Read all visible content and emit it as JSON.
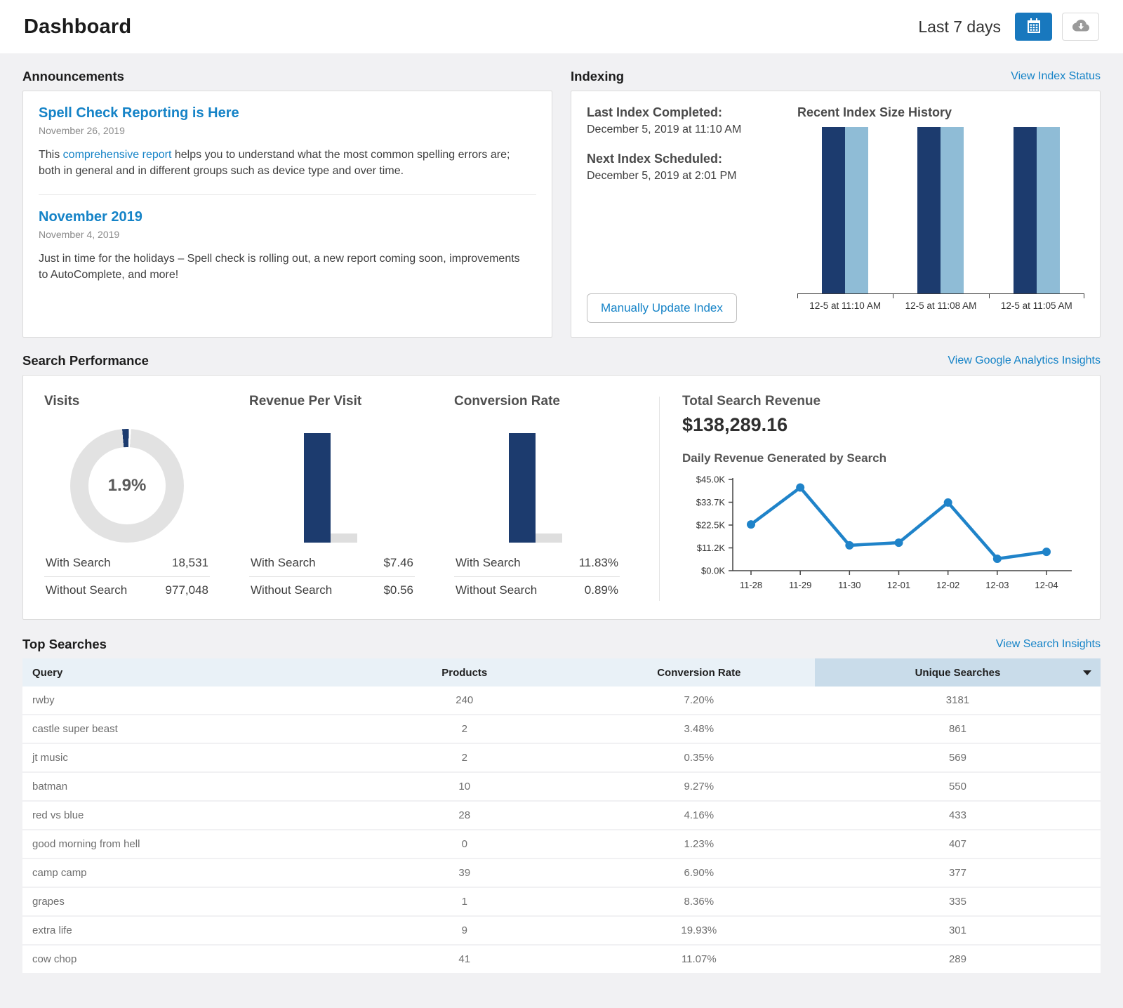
{
  "header": {
    "title": "Dashboard",
    "date_range": "Last 7 days"
  },
  "announcements": {
    "section_title": "Announcements",
    "items": [
      {
        "title": "Spell Check Reporting is Here",
        "date": "November 26, 2019",
        "body_pre": "This ",
        "link_text": "comprehensive report",
        "body_post": " helps you to understand what the most common spelling errors are; both in general and in different groups such as device type and over time."
      },
      {
        "title": "November 2019",
        "date": "November 4, 2019",
        "body": "Just in time for the holidays – Spell check is rolling out, a new report coming soon, improvements to AutoComplete, and more!"
      }
    ]
  },
  "indexing": {
    "section_title": "Indexing",
    "view_link": "View Index Status",
    "last_index_label": "Last Index Completed:",
    "last_index_value": "December 5, 2019 at 11:10 AM",
    "next_index_label": "Next Index Scheduled:",
    "next_index_value": "December 5, 2019 at 2:01 PM",
    "update_button": "Manually Update Index"
  },
  "search_performance": {
    "section_title": "Search Performance",
    "view_link": "View Google Analytics Insights",
    "metrics": [
      {
        "title": "Visits",
        "rows": [
          {
            "label": "With Search",
            "value": "18,531"
          },
          {
            "label": "Without Search",
            "value": "977,048"
          }
        ]
      },
      {
        "title": "Revenue Per Visit",
        "rows": [
          {
            "label": "With Search",
            "value": "$7.46"
          },
          {
            "label": "Without Search",
            "value": "$0.56"
          }
        ]
      },
      {
        "title": "Conversion Rate",
        "rows": [
          {
            "label": "With Search",
            "value": "11.83%"
          },
          {
            "label": "Without Search",
            "value": "0.89%"
          }
        ]
      }
    ],
    "total_revenue_label": "Total Search Revenue",
    "total_revenue_value": "$138,289.16"
  },
  "top_searches": {
    "section_title": "Top Searches",
    "view_link": "View Search Insights",
    "columns": [
      "Query",
      "Products",
      "Conversion Rate",
      "Unique Searches"
    ],
    "sorted_by": "Unique Searches",
    "sort_direction": "desc",
    "rows": [
      [
        "rwby",
        "240",
        "7.20%",
        "3181"
      ],
      [
        "castle super beast",
        "2",
        "3.48%",
        "861"
      ],
      [
        "jt music",
        "2",
        "0.35%",
        "569"
      ],
      [
        "batman",
        "10",
        "9.27%",
        "550"
      ],
      [
        "red vs blue",
        "28",
        "4.16%",
        "433"
      ],
      [
        "good morning from hell",
        "0",
        "1.23%",
        "407"
      ],
      [
        "camp camp",
        "39",
        "6.90%",
        "377"
      ],
      [
        "grapes",
        "1",
        "8.36%",
        "335"
      ],
      [
        "extra life",
        "9",
        "19.93%",
        "301"
      ],
      [
        "cow chop",
        "41",
        "11.07%",
        "289"
      ]
    ]
  },
  "chart_data": [
    {
      "id": "index_size_history",
      "type": "bar",
      "title": "Recent Index Size History",
      "categories": [
        "12-5 at 11:10 AM",
        "12-5 at 11:08 AM",
        "12-5 at 11:05 AM"
      ],
      "series": [
        {
          "name": "index-size-dark",
          "color": "#1c3b6e",
          "values": [
            1,
            1,
            1
          ]
        },
        {
          "name": "index-size-light",
          "color": "#8fbcd6",
          "values": [
            1,
            1,
            1
          ]
        }
      ],
      "note": "all bars equal height, no value labels shown"
    },
    {
      "id": "visits_share",
      "type": "pie",
      "title": "Visits",
      "center_label": "1.9%",
      "slices": [
        {
          "label": "With Search",
          "value": 1.9,
          "color": "#1c3b6e"
        },
        {
          "label": "Without Search",
          "value": 98.1,
          "color": "#e2e2e2"
        }
      ]
    },
    {
      "id": "revenue_per_visit",
      "type": "bar",
      "title": "Revenue Per Visit",
      "categories": [
        "With Search",
        "Without Search"
      ],
      "values": [
        7.46,
        0.56
      ],
      "colors": [
        "#1c3b6e",
        "#dedede"
      ]
    },
    {
      "id": "conversion_rate",
      "type": "bar",
      "title": "Conversion Rate",
      "categories": [
        "With Search",
        "Without Search"
      ],
      "values": [
        11.83,
        0.89
      ],
      "colors": [
        "#1c3b6e",
        "#dedede"
      ]
    },
    {
      "id": "daily_revenue",
      "type": "line",
      "title": "Daily Revenue Generated by Search",
      "x": [
        "11-28",
        "11-29",
        "11-30",
        "12-01",
        "12-02",
        "12-03",
        "12-04"
      ],
      "values": [
        22800,
        41000,
        12500,
        13800,
        33600,
        5900,
        9300
      ],
      "ylim": [
        0,
        45000
      ],
      "y_tick_labels": [
        "$45.0K",
        "$33.7K",
        "$22.5K",
        "$11.2K",
        "$0.0K"
      ],
      "color": "#1f83c9",
      "grid": false,
      "legend": false
    }
  ]
}
